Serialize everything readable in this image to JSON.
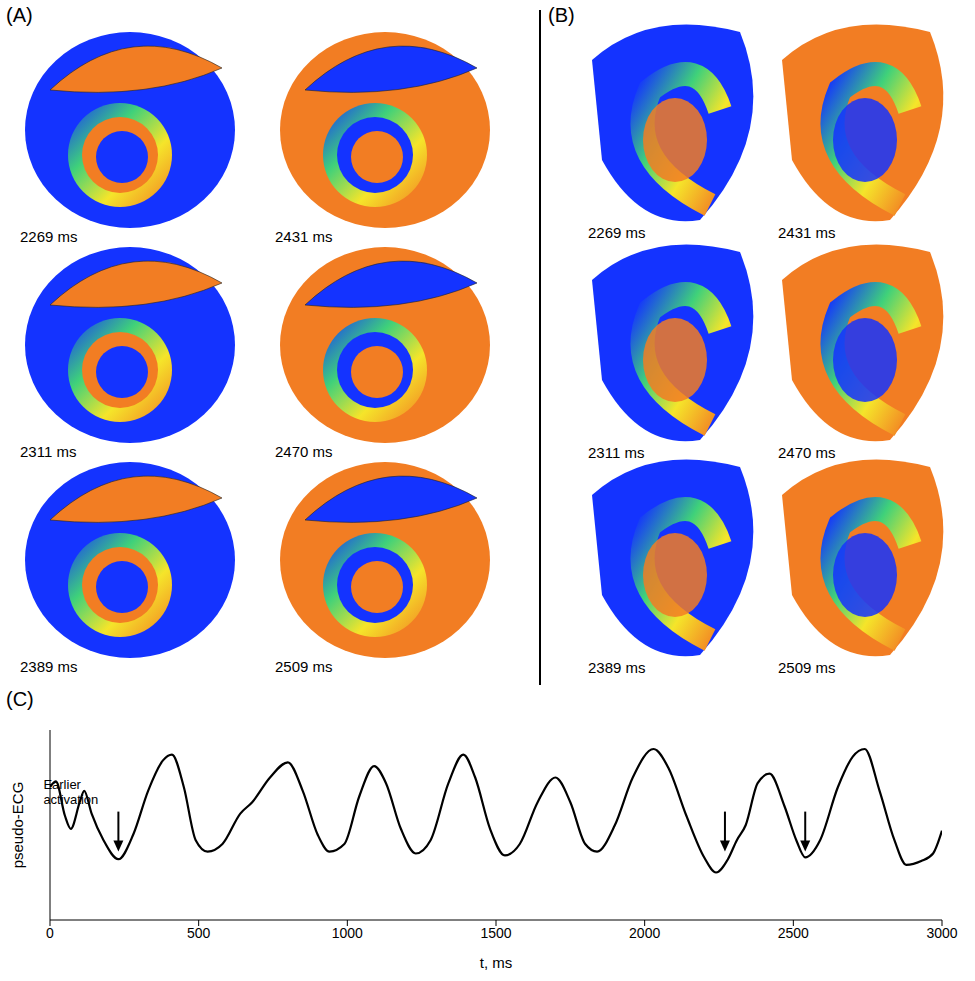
{
  "panels": [
    {
      "label": "(A)",
      "times": [
        "2269 ms",
        "2431 ms",
        "2311 ms",
        "2470 ms",
        "2389 ms",
        "2509 ms"
      ]
    },
    {
      "label": "(B)",
      "times": [
        "2269 ms",
        "2431 ms",
        "2311 ms",
        "2470 ms",
        "2389 ms",
        "2509 ms"
      ]
    }
  ],
  "chart_label": "(C)",
  "chart_data": {
    "type": "line",
    "xlabel": "t, ms",
    "ylabel": "pseudo-ECG",
    "color": "#000000",
    "x": [
      0,
      20,
      50,
      70,
      100,
      115,
      140,
      180,
      230,
      280,
      330,
      380,
      410,
      450,
      490,
      530,
      580,
      640,
      680,
      740,
      800,
      850,
      900,
      940,
      990,
      1040,
      1090,
      1130,
      1180,
      1230,
      1280,
      1340,
      1390,
      1430,
      1480,
      1530,
      1580,
      1640,
      1700,
      1750,
      1800,
      1840,
      1900,
      1960,
      2030,
      2080,
      2140,
      2200,
      2240,
      2280,
      2310,
      2340,
      2380,
      2420,
      2470,
      2510,
      2540,
      2590,
      2650,
      2700,
      2740,
      2790,
      2840,
      2880,
      2930,
      2970,
      3000
    ],
    "values": [
      0.7,
      0.73,
      0.55,
      0.48,
      0.62,
      0.68,
      0.56,
      0.42,
      0.32,
      0.45,
      0.68,
      0.84,
      0.87,
      0.7,
      0.42,
      0.36,
      0.4,
      0.56,
      0.62,
      0.75,
      0.83,
      0.68,
      0.45,
      0.36,
      0.4,
      0.65,
      0.81,
      0.72,
      0.48,
      0.35,
      0.42,
      0.72,
      0.87,
      0.75,
      0.48,
      0.34,
      0.4,
      0.62,
      0.75,
      0.62,
      0.4,
      0.36,
      0.5,
      0.75,
      0.9,
      0.8,
      0.55,
      0.33,
      0.25,
      0.32,
      0.42,
      0.5,
      0.72,
      0.77,
      0.6,
      0.42,
      0.33,
      0.42,
      0.7,
      0.86,
      0.9,
      0.68,
      0.42,
      0.29,
      0.31,
      0.35,
      0.47
    ],
    "xlim": [
      0,
      3000
    ],
    "xticks": [
      0,
      500,
      1000,
      1500,
      2000,
      2500,
      3000
    ],
    "ylim": [
      0,
      1
    ],
    "yticks": [
      0.32,
      0.74
    ],
    "tick_labels": "x",
    "arrows": [
      {
        "x": 230,
        "y": 0.36,
        "text": "Earlier activation"
      },
      {
        "x": 2270,
        "y": 0.36
      },
      {
        "x": 2540,
        "y": 0.36
      }
    ]
  }
}
